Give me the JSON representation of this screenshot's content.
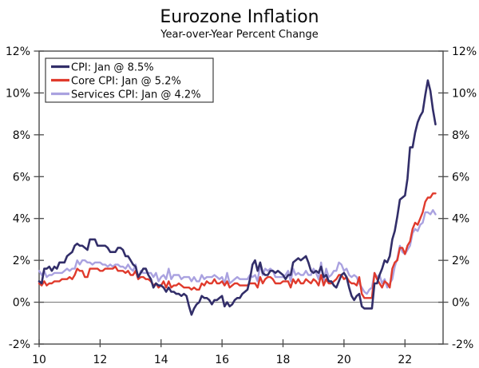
{
  "title": "Eurozone Inflation",
  "subtitle": "Year-over-Year Percent Change",
  "colors": {
    "cpi": "#322e69",
    "core_cpi": "#e03a2c",
    "services_cpi": "#aaa2e0",
    "axis": "#4a4a4a",
    "zero_line": "#6e6e6e",
    "legend_border": "#3f3f3f",
    "legend_bg": "#ffffff"
  },
  "chart_data": {
    "type": "line",
    "title": "Eurozone Inflation",
    "subtitle": "Year-over-Year Percent Change",
    "xlabel": "",
    "ylabel": "",
    "x_start": 10,
    "x_step": 0.0833333,
    "x_unit": "year (20xx), monthly points Jan 2010 - Jan 2023",
    "xlim": [
      10,
      23.25
    ],
    "ylim": [
      -2,
      12
    ],
    "x_ticks": [
      10,
      12,
      14,
      16,
      18,
      20,
      22
    ],
    "x_tick_labels": [
      "10",
      "12",
      "14",
      "16",
      "18",
      "20",
      "22"
    ],
    "y_ticks": [
      -2,
      0,
      2,
      4,
      6,
      8,
      10,
      12
    ],
    "y_tick_labels": [
      "-2%",
      "0%",
      "2%",
      "4%",
      "6%",
      "8%",
      "10%",
      "12%"
    ],
    "y_axis_sides": "both",
    "grid": false,
    "zero_line": true,
    "legend_position": "top-left",
    "series": [
      {
        "id": "cpi",
        "name": "CPI: Jan @ 8.5%",
        "color": "#322e69",
        "values": [
          1.0,
          0.9,
          1.6,
          1.6,
          1.7,
          1.5,
          1.7,
          1.6,
          1.9,
          1.9,
          1.9,
          2.2,
          2.3,
          2.4,
          2.7,
          2.8,
          2.7,
          2.7,
          2.6,
          2.5,
          3.0,
          3.0,
          3.0,
          2.7,
          2.7,
          2.7,
          2.7,
          2.6,
          2.4,
          2.4,
          2.4,
          2.6,
          2.6,
          2.5,
          2.2,
          2.2,
          2.0,
          1.8,
          1.7,
          1.2,
          1.4,
          1.6,
          1.6,
          1.3,
          1.1,
          0.7,
          0.9,
          0.8,
          0.8,
          0.7,
          0.5,
          0.7,
          0.5,
          0.5,
          0.4,
          0.4,
          0.3,
          0.4,
          0.3,
          -0.2,
          -0.6,
          -0.3,
          -0.1,
          0.0,
          0.3,
          0.2,
          0.2,
          0.1,
          -0.1,
          0.1,
          0.1,
          0.2,
          0.3,
          -0.2,
          0.0,
          -0.2,
          -0.1,
          0.1,
          0.2,
          0.2,
          0.4,
          0.5,
          0.6,
          1.1,
          1.8,
          2.0,
          1.5,
          1.9,
          1.4,
          1.3,
          1.3,
          1.5,
          1.5,
          1.4,
          1.5,
          1.4,
          1.3,
          1.1,
          1.3,
          1.3,
          1.9,
          2.0,
          2.1,
          2.0,
          2.1,
          2.2,
          1.9,
          1.5,
          1.4,
          1.5,
          1.4,
          1.7,
          1.2,
          1.3,
          1.0,
          1.0,
          0.8,
          0.7,
          1.0,
          1.3,
          1.4,
          1.2,
          0.7,
          0.3,
          0.1,
          0.3,
          0.4,
          -0.2,
          -0.3,
          -0.3,
          -0.3,
          -0.3,
          0.9,
          0.9,
          1.3,
          1.6,
          2.0,
          1.9,
          2.2,
          3.0,
          3.4,
          4.1,
          4.9,
          5.0,
          5.1,
          5.9,
          7.4,
          7.4,
          8.1,
          8.6,
          8.9,
          9.1,
          9.9,
          10.6,
          10.1,
          9.2,
          8.5
        ]
      },
      {
        "id": "core-cpi",
        "name": "Core CPI: Jan @ 5.2%",
        "color": "#e03a2c",
        "values": [
          0.9,
          0.8,
          1.0,
          0.8,
          0.9,
          0.9,
          1.0,
          1.0,
          1.0,
          1.1,
          1.1,
          1.1,
          1.2,
          1.1,
          1.3,
          1.6,
          1.5,
          1.5,
          1.2,
          1.2,
          1.6,
          1.6,
          1.6,
          1.6,
          1.5,
          1.5,
          1.6,
          1.6,
          1.6,
          1.6,
          1.7,
          1.5,
          1.5,
          1.5,
          1.4,
          1.5,
          1.3,
          1.3,
          1.5,
          1.1,
          1.2,
          1.2,
          1.1,
          1.1,
          1.0,
          0.8,
          0.9,
          0.7,
          0.8,
          1.0,
          0.7,
          1.0,
          0.7,
          0.8,
          0.8,
          0.9,
          0.8,
          0.7,
          0.7,
          0.7,
          0.6,
          0.7,
          0.6,
          0.6,
          0.9,
          0.8,
          1.0,
          0.9,
          0.9,
          1.1,
          0.9,
          0.9,
          1.0,
          0.8,
          1.0,
          0.7,
          0.8,
          0.9,
          0.9,
          0.8,
          0.8,
          0.8,
          0.8,
          0.9,
          0.9,
          0.9,
          0.7,
          1.2,
          0.9,
          1.1,
          1.2,
          1.2,
          1.1,
          0.9,
          0.9,
          0.9,
          1.0,
          1.0,
          1.0,
          0.7,
          1.1,
          0.9,
          1.1,
          0.9,
          0.9,
          1.1,
          1.0,
          0.9,
          1.1,
          1.0,
          0.8,
          1.3,
          0.8,
          1.1,
          0.9,
          0.9,
          1.0,
          1.1,
          1.3,
          1.3,
          1.1,
          1.2,
          1.0,
          0.9,
          0.9,
          0.8,
          1.2,
          0.4,
          0.2,
          0.2,
          0.2,
          0.2,
          1.4,
          1.1,
          0.9,
          0.7,
          1.0,
          0.9,
          0.7,
          1.6,
          1.9,
          2.0,
          2.6,
          2.6,
          2.3,
          2.7,
          2.9,
          3.5,
          3.8,
          3.7,
          4.0,
          4.3,
          4.8,
          5.0,
          5.0,
          5.2,
          5.2
        ]
      },
      {
        "id": "services-cpi",
        "name": "Services CPI: Jan @ 4.2%",
        "color": "#aaa2e0",
        "values": [
          1.5,
          1.3,
          1.5,
          1.2,
          1.3,
          1.3,
          1.4,
          1.4,
          1.4,
          1.4,
          1.5,
          1.6,
          1.5,
          1.6,
          1.6,
          2.0,
          1.8,
          2.0,
          2.0,
          1.9,
          1.9,
          1.8,
          1.9,
          1.9,
          1.9,
          1.8,
          1.8,
          1.7,
          1.8,
          1.7,
          1.8,
          1.8,
          1.7,
          1.7,
          1.6,
          1.8,
          1.6,
          1.5,
          1.8,
          1.1,
          1.5,
          1.4,
          1.4,
          1.4,
          1.4,
          1.2,
          1.4,
          1.0,
          1.2,
          1.3,
          1.1,
          1.6,
          1.1,
          1.3,
          1.3,
          1.3,
          1.1,
          1.2,
          1.2,
          1.2,
          1.0,
          1.2,
          1.0,
          1.0,
          1.3,
          1.1,
          1.2,
          1.2,
          1.2,
          1.3,
          1.2,
          1.1,
          1.2,
          0.9,
          1.4,
          0.9,
          1.0,
          1.1,
          1.2,
          1.1,
          1.1,
          1.1,
          1.1,
          1.3,
          1.2,
          1.3,
          1.0,
          1.8,
          1.3,
          1.6,
          1.5,
          1.6,
          1.5,
          1.2,
          1.2,
          1.2,
          1.2,
          1.3,
          1.5,
          1.0,
          1.6,
          1.3,
          1.4,
          1.3,
          1.3,
          1.5,
          1.3,
          1.3,
          1.6,
          1.4,
          1.1,
          1.9,
          1.0,
          1.6,
          1.2,
          1.3,
          1.5,
          1.5,
          1.9,
          1.8,
          1.5,
          1.6,
          1.3,
          1.2,
          1.3,
          1.2,
          0.9,
          0.7,
          0.5,
          0.4,
          0.6,
          0.7,
          1.4,
          1.2,
          1.3,
          0.9,
          1.1,
          0.7,
          0.9,
          1.1,
          1.7,
          2.1,
          2.7,
          2.4,
          2.3,
          2.5,
          2.7,
          3.3,
          3.5,
          3.4,
          3.7,
          3.8,
          4.3,
          4.3,
          4.2,
          4.4,
          4.2
        ]
      }
    ]
  }
}
